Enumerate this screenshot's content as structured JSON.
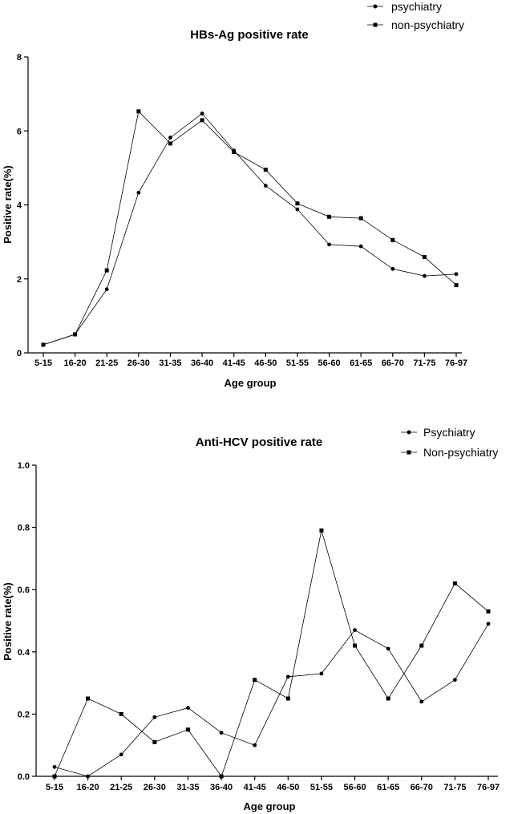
{
  "chart_data": [
    {
      "type": "line",
      "title": "HBs-Ag positive rate",
      "xlabel": "Age group",
      "ylabel": "Positive rate(%)",
      "ylim": [
        0,
        8
      ],
      "yticks": [
        0,
        2,
        4,
        6,
        8
      ],
      "categories": [
        "5-15",
        "16-20",
        "21-25",
        "26-30",
        "31-35",
        "36-40",
        "41-45",
        "46-50",
        "51-55",
        "56-60",
        "61-65",
        "66-70",
        "71-75",
        "76-97"
      ],
      "series": [
        {
          "name": "psychiatry",
          "marker": "circle",
          "values": [
            0.22,
            0.5,
            1.72,
            4.33,
            5.82,
            6.47,
            5.47,
            4.52,
            3.88,
            2.93,
            2.88,
            2.27,
            2.08,
            2.13
          ]
        },
        {
          "name": "non-psychiatry",
          "marker": "square",
          "values": [
            0.22,
            0.5,
            2.23,
            6.53,
            5.66,
            6.29,
            5.43,
            4.95,
            4.04,
            3.68,
            3.64,
            3.05,
            2.59,
            1.83
          ]
        }
      ],
      "legend_position": "top-right"
    },
    {
      "type": "line",
      "title": "Anti-HCV positive rate",
      "xlabel": "Age group",
      "ylabel": "Positive rate(%)",
      "ylim": [
        0,
        1.0
      ],
      "yticks": [
        "0.0",
        "0.2",
        "0.4",
        "0.6",
        "0.8",
        "1.0"
      ],
      "categories": [
        "5-15",
        "16-20",
        "21-25",
        "26-30",
        "31-35",
        "36-40",
        "41-45",
        "46-50",
        "51-55",
        "56-60",
        "61-65",
        "66-70",
        "71-75",
        "76-97"
      ],
      "series": [
        {
          "name": "Psychiatry",
          "marker": "circle",
          "values": [
            0.03,
            0.0,
            0.07,
            0.19,
            0.22,
            0.14,
            0.1,
            0.32,
            0.33,
            0.47,
            0.41,
            0.24,
            0.31,
            0.49
          ]
        },
        {
          "name": "Non-psychiatry",
          "marker": "square",
          "values": [
            0.0,
            0.25,
            0.2,
            0.11,
            0.15,
            0.0,
            0.31,
            0.25,
            0.79,
            0.42,
            0.25,
            0.42,
            0.62,
            0.53
          ]
        }
      ],
      "legend_position": "top-right"
    }
  ]
}
